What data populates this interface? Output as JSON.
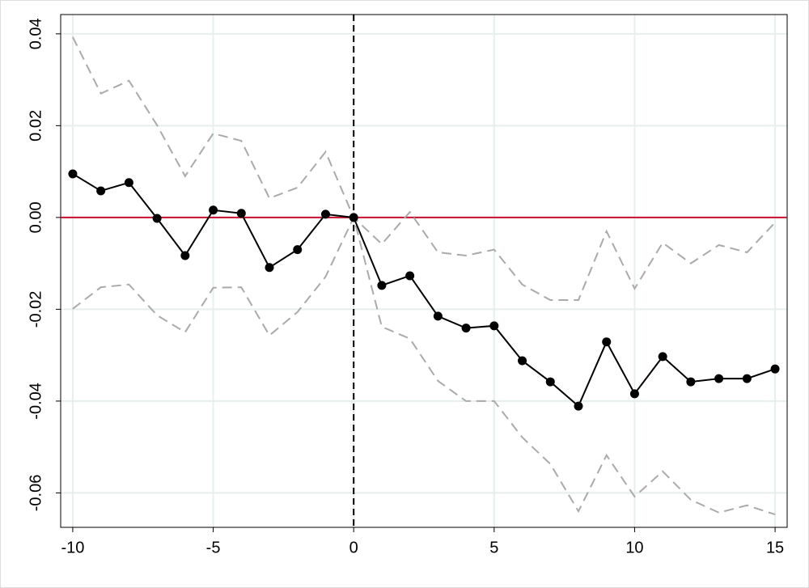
{
  "chart_data": {
    "type": "line",
    "x": [
      -10,
      -9,
      -8,
      -7,
      -6,
      -5,
      -4,
      -3,
      -2,
      -1,
      0,
      1,
      2,
      3,
      4,
      5,
      6,
      7,
      8,
      9,
      10,
      11,
      12,
      13,
      14,
      15
    ],
    "series": [
      {
        "color": "#aaaaaa",
        "dashed": true,
        "markers": false,
        "values": [
          0.0393,
          0.027,
          0.0298,
          0.0201,
          0.009,
          0.0183,
          0.0167,
          0.0042,
          0.0065,
          0.0143,
          0,
          -0.0058,
          0.0012,
          -0.0076,
          -0.0083,
          -0.007,
          -0.0146,
          -0.018,
          -0.018,
          -0.003,
          -0.0155,
          -0.0055,
          -0.01,
          -0.006,
          -0.0076,
          -0.0011
        ]
      },
      {
        "color": "#aaaaaa",
        "dashed": true,
        "markers": false,
        "values": [
          -0.0199,
          -0.0152,
          -0.0146,
          -0.0213,
          -0.025,
          -0.0153,
          -0.0152,
          -0.0257,
          -0.0206,
          -0.0129,
          0,
          -0.0238,
          -0.0264,
          -0.0356,
          -0.04,
          -0.04,
          -0.0479,
          -0.0537,
          -0.064,
          -0.0518,
          -0.0608,
          -0.0553,
          -0.0615,
          -0.0643,
          -0.0627,
          -0.0647
        ]
      },
      {
        "color": "#000000",
        "dashed": false,
        "markers": true,
        "values": [
          0.0095,
          0.0058,
          0.0076,
          -0.0002,
          -0.0083,
          0.0016,
          0.0009,
          -0.0109,
          -0.007,
          0.0007,
          0,
          -0.0148,
          -0.0127,
          -0.0215,
          -0.0241,
          -0.0236,
          -0.0312,
          -0.0358,
          -0.0411,
          -0.0271,
          -0.0384,
          -0.0303,
          -0.0358,
          -0.0351,
          -0.0351,
          -0.033
        ]
      }
    ],
    "xlim": [
      -10.43,
      15.43
    ],
    "ylim": [
      -0.0675,
      0.0442
    ],
    "xticks": [
      -10,
      -5,
      0,
      5,
      10,
      15
    ],
    "yticks": [
      -0.06,
      -0.04,
      -0.02,
      {
        "value": 0,
        "label": "0.00"
      },
      0.02,
      0.04
    ],
    "grid": true,
    "grid_color": "#e6eeee",
    "hline": 0,
    "hline_color": "#c8102e",
    "vline": 0,
    "vline_color": "#000000"
  }
}
